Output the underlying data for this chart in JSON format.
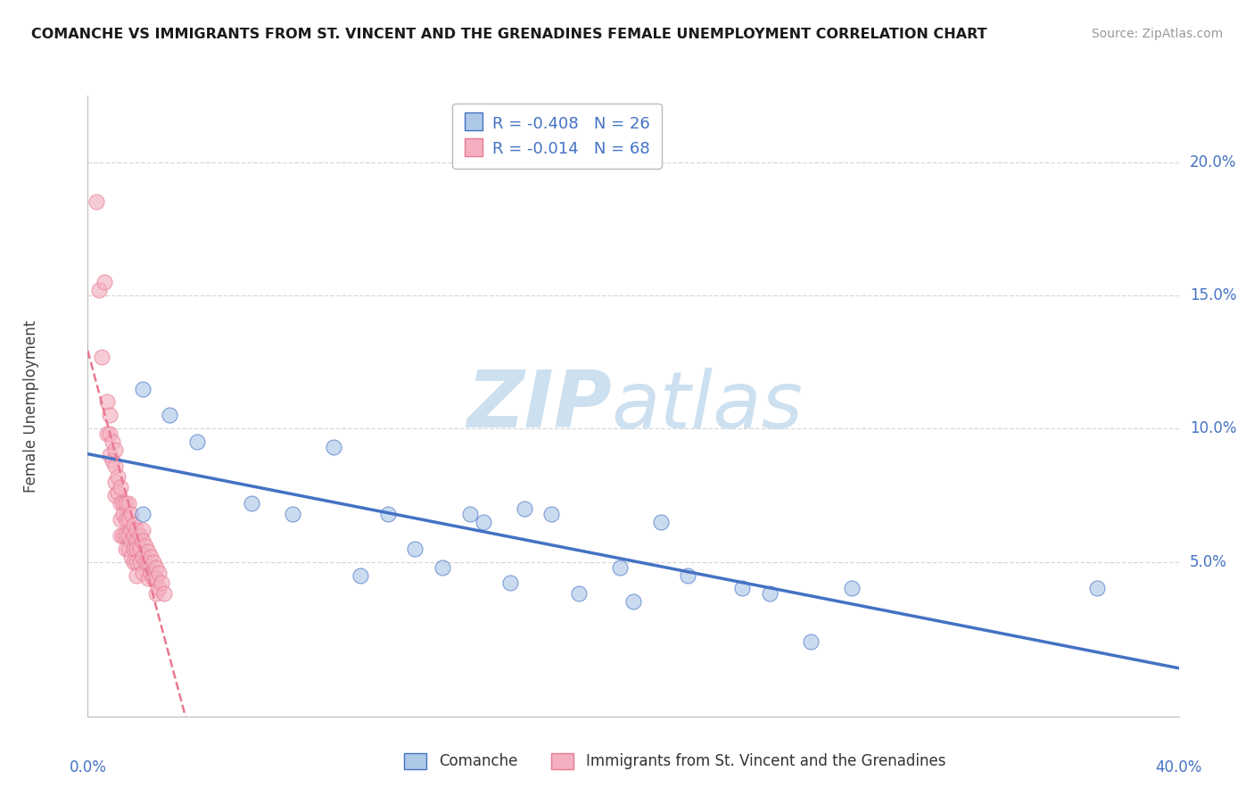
{
  "title": "COMANCHE VS IMMIGRANTS FROM ST. VINCENT AND THE GRENADINES FEMALE UNEMPLOYMENT CORRELATION CHART",
  "source": "Source: ZipAtlas.com",
  "ylabel": "Female Unemployment",
  "y_tick_values": [
    0.0,
    0.05,
    0.1,
    0.15,
    0.2
  ],
  "y_tick_labels": [
    "",
    "5.0%",
    "10.0%",
    "15.0%",
    "20.0%"
  ],
  "xlim": [
    0.0,
    0.4
  ],
  "ylim": [
    -0.008,
    0.225
  ],
  "legend_R1": "-0.408",
  "legend_N1": "26",
  "legend_R2": "-0.014",
  "legend_N2": "68",
  "color_blue_fill": "#aec8e8",
  "color_blue_edge": "#4472c4",
  "color_pink_fill": "#f4b0c0",
  "color_pink_edge": "#e87890",
  "color_blue_line": "#4472c4",
  "color_pink_line": "#e87890",
  "color_grid": "#d8d8d8",
  "comanche_x": [
    0.02,
    0.02,
    0.03,
    0.04,
    0.06,
    0.075,
    0.09,
    0.1,
    0.11,
    0.12,
    0.13,
    0.14,
    0.145,
    0.155,
    0.16,
    0.17,
    0.18,
    0.195,
    0.2,
    0.21,
    0.22,
    0.24,
    0.25,
    0.265,
    0.28,
    0.37
  ],
  "comanche_y": [
    0.115,
    0.068,
    0.105,
    0.095,
    0.072,
    0.068,
    0.093,
    0.045,
    0.068,
    0.055,
    0.048,
    0.068,
    0.065,
    0.042,
    0.07,
    0.068,
    0.038,
    0.048,
    0.035,
    0.065,
    0.045,
    0.04,
    0.038,
    0.02,
    0.04,
    0.04
  ],
  "svg_x": [
    0.003,
    0.004,
    0.005,
    0.006,
    0.007,
    0.007,
    0.008,
    0.008,
    0.008,
    0.009,
    0.009,
    0.01,
    0.01,
    0.01,
    0.01,
    0.011,
    0.011,
    0.012,
    0.012,
    0.012,
    0.012,
    0.013,
    0.013,
    0.013,
    0.014,
    0.014,
    0.014,
    0.014,
    0.015,
    0.015,
    0.015,
    0.015,
    0.016,
    0.016,
    0.016,
    0.016,
    0.017,
    0.017,
    0.017,
    0.017,
    0.018,
    0.018,
    0.018,
    0.018,
    0.018,
    0.019,
    0.019,
    0.019,
    0.02,
    0.02,
    0.02,
    0.02,
    0.021,
    0.021,
    0.022,
    0.022,
    0.022,
    0.023,
    0.023,
    0.024,
    0.024,
    0.025,
    0.025,
    0.025,
    0.026,
    0.026,
    0.027,
    0.028
  ],
  "svg_y": [
    0.185,
    0.152,
    0.127,
    0.155,
    0.11,
    0.098,
    0.105,
    0.098,
    0.09,
    0.095,
    0.088,
    0.092,
    0.086,
    0.08,
    0.075,
    0.082,
    0.076,
    0.078,
    0.072,
    0.066,
    0.06,
    0.072,
    0.068,
    0.06,
    0.072,
    0.066,
    0.06,
    0.055,
    0.072,
    0.066,
    0.06,
    0.055,
    0.068,
    0.062,
    0.058,
    0.052,
    0.064,
    0.06,
    0.055,
    0.05,
    0.062,
    0.058,
    0.055,
    0.05,
    0.045,
    0.06,
    0.055,
    0.05,
    0.062,
    0.058,
    0.052,
    0.046,
    0.056,
    0.05,
    0.054,
    0.05,
    0.044,
    0.052,
    0.046,
    0.05,
    0.044,
    0.048,
    0.044,
    0.038,
    0.046,
    0.04,
    0.042,
    0.038
  ]
}
